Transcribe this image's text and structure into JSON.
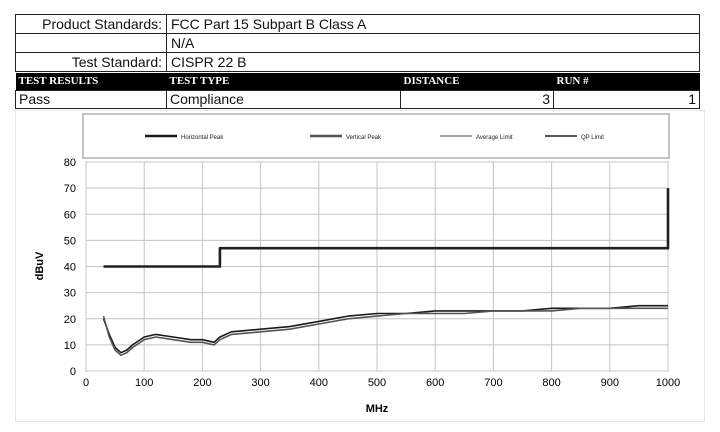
{
  "header": {
    "rows": [
      {
        "label": "Product Standards:",
        "value": "FCC Part 15 Subpart B Class A"
      },
      {
        "label": "",
        "value": "N/A"
      },
      {
        "label": "Test Standard:",
        "value": "CISPR 22 B"
      }
    ]
  },
  "results": {
    "headers": [
      "TEST RESULTS",
      "TEST TYPE",
      "DISTANCE",
      "RUN #"
    ],
    "values": [
      "Pass",
      "Compliance",
      "3",
      "1"
    ]
  },
  "chart_data": {
    "type": "line",
    "xlabel": "MHz",
    "ylabel": "dBuV",
    "xlim": [
      0,
      1000
    ],
    "ylim": [
      0,
      80
    ],
    "xticks": [
      "0",
      "100",
      "200",
      "300",
      "400",
      "500",
      "600",
      "700",
      "800",
      "900",
      "1000"
    ],
    "yticks": [
      "0",
      "10",
      "20",
      "30",
      "40",
      "50",
      "60",
      "70",
      "80"
    ],
    "grid": true,
    "legend_position": "top",
    "series": [
      {
        "name": "Horizontal Peak",
        "color": "#1a1a1a",
        "x": [
          30,
          40,
          50,
          60,
          70,
          80,
          100,
          120,
          150,
          180,
          200,
          220,
          230,
          250,
          300,
          350,
          400,
          450,
          500,
          550,
          600,
          650,
          700,
          750,
          800,
          850,
          900,
          950,
          1000
        ],
        "y": [
          20,
          14,
          9,
          7,
          8,
          10,
          13,
          14,
          13,
          12,
          12,
          11,
          13,
          15,
          16,
          17,
          19,
          21,
          22,
          22,
          23,
          23,
          23,
          23,
          24,
          24,
          24,
          25,
          25
        ]
      },
      {
        "name": "Vertical Peak",
        "color": "#555555",
        "x": [
          30,
          40,
          50,
          60,
          70,
          80,
          100,
          120,
          150,
          180,
          200,
          220,
          230,
          250,
          300,
          350,
          400,
          450,
          500,
          550,
          600,
          650,
          700,
          750,
          800,
          850,
          900,
          950,
          1000
        ],
        "y": [
          21,
          13,
          8,
          6,
          7,
          9,
          12,
          13,
          12,
          11,
          11,
          10,
          12,
          14,
          15,
          16,
          18,
          20,
          21,
          22,
          22,
          22,
          23,
          23,
          23,
          24,
          24,
          24,
          24
        ]
      },
      {
        "name": "Average Limit",
        "color": "#8a8a8a",
        "x": [],
        "y": []
      },
      {
        "name": "QP Limit",
        "color": "#202020",
        "x": [
          30,
          230,
          230,
          1000,
          1000
        ],
        "y": [
          40,
          40,
          47,
          47,
          70
        ]
      }
    ]
  }
}
